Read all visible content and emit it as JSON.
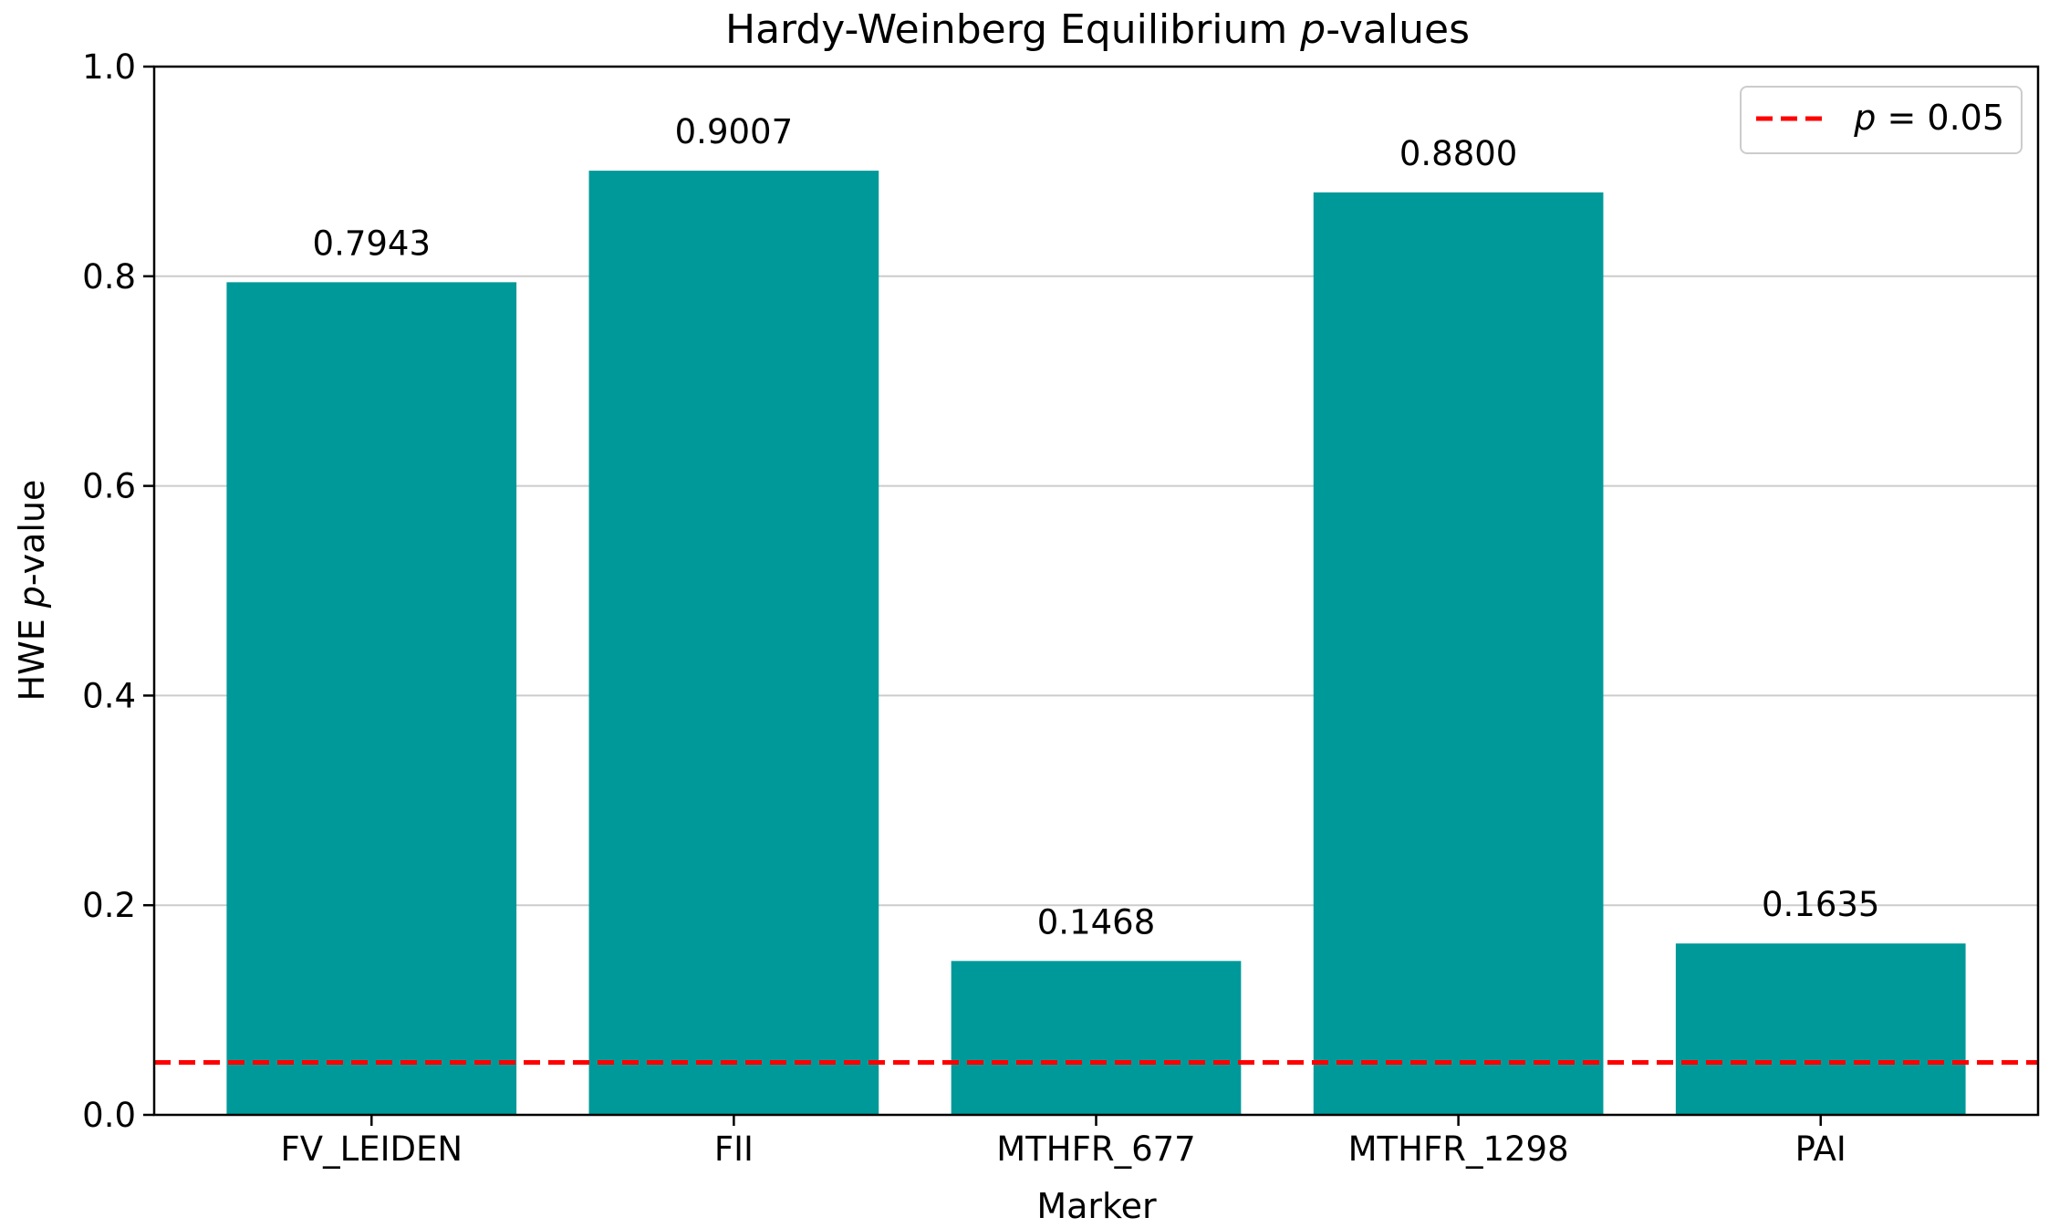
{
  "chart_data": {
    "type": "bar",
    "title": {
      "pre": "Hardy-Weinberg Equilibrium ",
      "ital": "p",
      "post": "-values"
    },
    "xlabel": "Marker",
    "ylabel": {
      "pre": "HWE ",
      "ital": "p",
      "post": "-value"
    },
    "categories": [
      "FV_LEIDEN",
      "FII",
      "MTHFR_677",
      "MTHFR_1298",
      "PAI"
    ],
    "values": [
      0.7943,
      0.9007,
      0.1468,
      0.88,
      0.1635
    ],
    "value_labels": [
      "0.7943",
      "0.9007",
      "0.1468",
      "0.8800",
      "0.1635"
    ],
    "ylim": [
      0,
      1.0
    ],
    "yticks": [
      0.0,
      0.2,
      0.4,
      0.6,
      0.8,
      1.0
    ],
    "ytick_labels": [
      "0.0",
      "0.2",
      "0.4",
      "0.6",
      "0.8",
      "1.0"
    ],
    "grid": "y",
    "bar_color": "#009999",
    "threshold": {
      "value": 0.05,
      "color": "#ff0000",
      "style": "dashed",
      "label_ital": "p",
      "label_rest": " = 0.05"
    },
    "legend_position": "upper right"
  }
}
